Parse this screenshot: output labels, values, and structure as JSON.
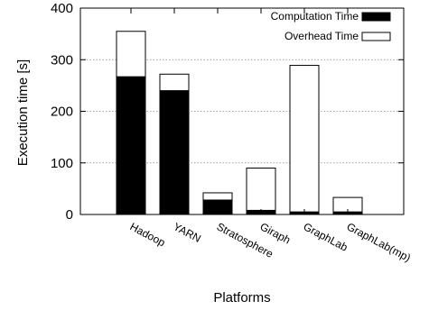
{
  "chart_data": {
    "type": "bar",
    "stacked": true,
    "categories": [
      "Hadoop",
      "YARN",
      "Stratosphere",
      "Giraph",
      "GraphLab",
      "GraphLab(mp)"
    ],
    "series": [
      {
        "name": "Computation Time",
        "values": [
          267,
          240,
          28,
          8,
          5,
          5
        ],
        "color": "#000000"
      },
      {
        "name": "Overhead Time",
        "values": [
          88,
          32,
          14,
          82,
          284,
          28
        ],
        "color": "#ffffff"
      }
    ],
    "xlabel": "Platforms",
    "ylabel": "Execution time [s]",
    "ylim": [
      0,
      400
    ],
    "yticks": [
      0,
      100,
      200,
      300,
      400
    ],
    "grid": "horizontal-dotted",
    "legend_position": "top-right"
  }
}
